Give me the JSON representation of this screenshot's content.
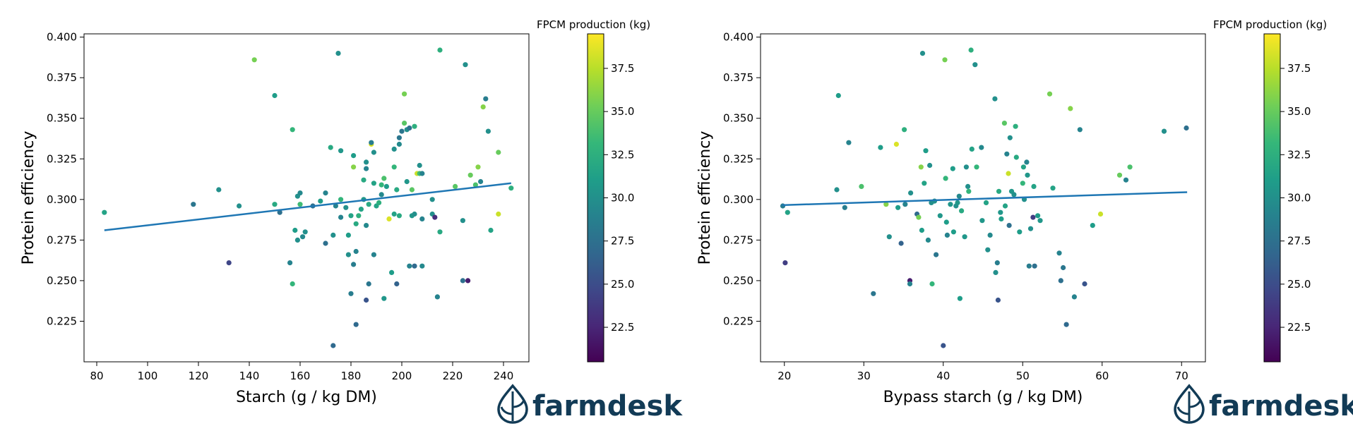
{
  "colors": {
    "regression_line": "#1f77b4",
    "logo": "#123b56",
    "axis": "#000000"
  },
  "colormap": {
    "name": "viridis",
    "stops": [
      "#440154",
      "#482878",
      "#3e4989",
      "#31688e",
      "#26828e",
      "#1f9e89",
      "#35b779",
      "#6ece58",
      "#b5de2b",
      "#fde725"
    ]
  },
  "logo": {
    "text": "farmdesk",
    "icon": "drop-leaf-icon"
  },
  "chart_data": [
    {
      "type": "scatter",
      "xlabel": "Starch (g / kg DM)",
      "ylabel": "Protein efficiency",
      "xlim": [
        75,
        250
      ],
      "ylim": [
        0.2,
        0.402
      ],
      "xticks": [
        80,
        100,
        120,
        140,
        160,
        180,
        200,
        220,
        240
      ],
      "yticks": [
        0.225,
        0.25,
        0.275,
        0.3,
        0.325,
        0.35,
        0.375,
        0.4
      ],
      "xtick_labels": [
        "80",
        "100",
        "120",
        "140",
        "160",
        "180",
        "200",
        "220",
        "240"
      ],
      "ytick_labels": [
        "0.225",
        "0.250",
        "0.275",
        "0.300",
        "0.325",
        "0.350",
        "0.375",
        "0.400"
      ],
      "colorbar": {
        "label": "FPCM production (kg)",
        "range": [
          20.5,
          39.5
        ],
        "ticks": [
          22.5,
          25.0,
          27.5,
          30.0,
          32.5,
          35.0,
          37.5
        ],
        "tick_labels": [
          "22.5",
          "25.0",
          "27.5",
          "30.0",
          "32.5",
          "35.0",
          "37.5"
        ]
      },
      "regression": {
        "x": [
          83,
          243
        ],
        "y": [
          0.281,
          0.31
        ]
      },
      "points": [
        [
          83,
          0.292,
          31.5
        ],
        [
          118,
          0.297,
          28.0
        ],
        [
          128,
          0.306,
          30.0
        ],
        [
          132,
          0.261,
          24.5
        ],
        [
          136,
          0.296,
          30.0
        ],
        [
          142,
          0.386,
          35.5
        ],
        [
          150,
          0.364,
          31.0
        ],
        [
          150,
          0.297,
          32.0
        ],
        [
          152,
          0.292,
          27.5
        ],
        [
          156,
          0.261,
          29.0
        ],
        [
          157,
          0.343,
          33.0
        ],
        [
          157,
          0.248,
          33.0
        ],
        [
          158,
          0.281,
          31.0
        ],
        [
          159,
          0.275,
          30.0
        ],
        [
          159,
          0.302,
          30.0
        ],
        [
          160,
          0.304,
          29.5
        ],
        [
          160,
          0.297,
          33.5
        ],
        [
          161,
          0.277,
          29.5
        ],
        [
          162,
          0.28,
          30.0
        ],
        [
          165,
          0.296,
          27.5
        ],
        [
          168,
          0.299,
          31.0
        ],
        [
          170,
          0.273,
          27.5
        ],
        [
          170,
          0.304,
          29.0
        ],
        [
          172,
          0.332,
          32.0
        ],
        [
          173,
          0.278,
          30.0
        ],
        [
          173,
          0.21,
          27.0
        ],
        [
          174,
          0.296,
          29.0
        ],
        [
          175,
          0.39,
          30.0
        ],
        [
          176,
          0.33,
          30.5
        ],
        [
          176,
          0.3,
          33.0
        ],
        [
          176,
          0.289,
          29.0
        ],
        [
          178,
          0.295,
          30.0
        ],
        [
          179,
          0.266,
          30.0
        ],
        [
          179,
          0.278,
          31.0
        ],
        [
          180,
          0.29,
          31.5
        ],
        [
          180,
          0.242,
          28.5
        ],
        [
          181,
          0.32,
          36.0
        ],
        [
          181,
          0.26,
          28.5
        ],
        [
          181,
          0.327,
          31.0
        ],
        [
          182,
          0.223,
          27.0
        ],
        [
          182,
          0.268,
          29.0
        ],
        [
          182,
          0.285,
          32.0
        ],
        [
          183,
          0.29,
          32.5
        ],
        [
          184,
          0.294,
          31.5
        ],
        [
          185,
          0.3,
          30.5
        ],
        [
          185,
          0.312,
          32.0
        ],
        [
          186,
          0.284,
          29.5
        ],
        [
          186,
          0.238,
          25.5
        ],
        [
          186,
          0.319,
          29.0
        ],
        [
          186,
          0.323,
          30.0
        ],
        [
          187,
          0.248,
          28.0
        ],
        [
          187,
          0.297,
          32.0
        ],
        [
          188,
          0.334,
          38.5
        ],
        [
          188,
          0.335,
          28.5
        ],
        [
          189,
          0.31,
          31.5
        ],
        [
          189,
          0.266,
          29.0
        ],
        [
          189,
          0.329,
          30.0
        ],
        [
          190,
          0.296,
          31.5
        ],
        [
          191,
          0.298,
          32.5
        ],
        [
          192,
          0.303,
          29.5
        ],
        [
          192,
          0.309,
          33.0
        ],
        [
          193,
          0.313,
          34.0
        ],
        [
          193,
          0.239,
          30.5
        ],
        [
          194,
          0.308,
          31.0
        ],
        [
          195,
          0.288,
          38.5
        ],
        [
          196,
          0.255,
          31.0
        ],
        [
          197,
          0.331,
          30.0
        ],
        [
          197,
          0.32,
          33.0
        ],
        [
          197,
          0.291,
          31.5
        ],
        [
          198,
          0.306,
          32.0
        ],
        [
          198,
          0.248,
          26.5
        ],
        [
          199,
          0.29,
          32.0
        ],
        [
          199,
          0.334,
          29.5
        ],
        [
          199,
          0.338,
          28.0
        ],
        [
          200,
          0.342,
          28.0
        ],
        [
          201,
          0.347,
          34.5
        ],
        [
          201,
          0.365,
          35.5
        ],
        [
          202,
          0.343,
          30.0
        ],
        [
          202,
          0.311,
          30.5
        ],
        [
          203,
          0.344,
          27.5
        ],
        [
          203,
          0.259,
          29.0
        ],
        [
          204,
          0.29,
          30.5
        ],
        [
          204,
          0.306,
          34.5
        ],
        [
          205,
          0.291,
          30.0
        ],
        [
          205,
          0.345,
          32.5
        ],
        [
          205,
          0.259,
          27.0
        ],
        [
          206,
          0.316,
          38.0
        ],
        [
          207,
          0.316,
          33.5
        ],
        [
          207,
          0.321,
          30.0
        ],
        [
          208,
          0.288,
          29.0
        ],
        [
          208,
          0.259,
          29.5
        ],
        [
          208,
          0.316,
          29.0
        ],
        [
          212,
          0.291,
          30.0
        ],
        [
          212,
          0.3,
          30.0
        ],
        [
          213,
          0.289,
          23.0
        ],
        [
          214,
          0.24,
          29.0
        ],
        [
          215,
          0.392,
          32.5
        ],
        [
          215,
          0.28,
          32.0
        ],
        [
          221,
          0.308,
          34.5
        ],
        [
          224,
          0.287,
          30.0
        ],
        [
          224,
          0.25,
          27.5
        ],
        [
          225,
          0.383,
          30.0
        ],
        [
          226,
          0.25,
          22.0
        ],
        [
          227,
          0.315,
          35.0
        ],
        [
          229,
          0.309,
          34.0
        ],
        [
          230,
          0.32,
          36.0
        ],
        [
          231,
          0.311,
          29.0
        ],
        [
          232,
          0.357,
          36.0
        ],
        [
          233,
          0.362,
          28.5
        ],
        [
          234,
          0.342,
          30.0
        ],
        [
          235,
          0.281,
          31.5
        ],
        [
          238,
          0.329,
          35.0
        ],
        [
          238,
          0.291,
          38.0
        ],
        [
          243,
          0.307,
          32.5
        ]
      ]
    },
    {
      "type": "scatter",
      "xlabel": "Bypass starch (g / kg DM)",
      "ylabel": "Protein efficiency",
      "xlim": [
        17,
        73
      ],
      "ylim": [
        0.2,
        0.402
      ],
      "xticks": [
        20,
        30,
        40,
        50,
        60,
        70
      ],
      "yticks": [
        0.225,
        0.25,
        0.275,
        0.3,
        0.325,
        0.35,
        0.375,
        0.4
      ],
      "xtick_labels": [
        "20",
        "30",
        "40",
        "50",
        "60",
        "70"
      ],
      "ytick_labels": [
        "0.225",
        "0.250",
        "0.275",
        "0.300",
        "0.325",
        "0.350",
        "0.375",
        "0.400"
      ],
      "colorbar": {
        "label": "FPCM production (kg)",
        "range": [
          20.5,
          39.5
        ],
        "ticks": [
          22.5,
          25.0,
          27.5,
          30.0,
          32.5,
          35.0,
          37.5
        ],
        "tick_labels": [
          "22.5",
          "25.0",
          "27.5",
          "30.0",
          "32.5",
          "35.0",
          "37.5"
        ]
      },
      "regression": {
        "x": [
          19.7,
          70.7
        ],
        "y": [
          0.2965,
          0.3045
        ]
      },
      "points": [
        [
          19.8,
          0.296,
          28.5
        ],
        [
          20.1,
          0.261,
          24.0
        ],
        [
          20.4,
          0.292,
          31.5
        ],
        [
          26.6,
          0.306,
          30.0
        ],
        [
          26.8,
          0.364,
          31.0
        ],
        [
          27.6,
          0.295,
          28.5
        ],
        [
          28.1,
          0.335,
          29.0
        ],
        [
          29.7,
          0.308,
          34.0
        ],
        [
          31.2,
          0.242,
          28.0
        ],
        [
          32.1,
          0.332,
          31.0
        ],
        [
          32.8,
          0.297,
          36.0
        ],
        [
          33.2,
          0.277,
          30.0
        ],
        [
          34.1,
          0.334,
          38.5
        ],
        [
          34.3,
          0.295,
          31.0
        ],
        [
          34.7,
          0.273,
          26.5
        ],
        [
          35.1,
          0.343,
          32.5
        ],
        [
          35.2,
          0.297,
          29.0
        ],
        [
          35.8,
          0.25,
          22.0
        ],
        [
          35.8,
          0.248,
          29.0
        ],
        [
          35.9,
          0.304,
          30.0
        ],
        [
          36.7,
          0.291,
          27.0
        ],
        [
          36.9,
          0.289,
          35.5
        ],
        [
          37.2,
          0.32,
          36.0
        ],
        [
          37.3,
          0.281,
          31.0
        ],
        [
          37.4,
          0.39,
          30.0
        ],
        [
          37.6,
          0.31,
          31.5
        ],
        [
          37.8,
          0.33,
          31.0
        ],
        [
          38.1,
          0.275,
          29.5
        ],
        [
          38.3,
          0.321,
          30.0
        ],
        [
          38.5,
          0.298,
          30.0
        ],
        [
          38.6,
          0.248,
          33.0
        ],
        [
          38.9,
          0.299,
          30.0
        ],
        [
          39.1,
          0.266,
          28.0
        ],
        [
          39.6,
          0.29,
          30.5
        ],
        [
          40.0,
          0.21,
          25.5
        ],
        [
          40.2,
          0.386,
          35.5
        ],
        [
          40.3,
          0.313,
          33.0
        ],
        [
          40.4,
          0.286,
          31.0
        ],
        [
          40.5,
          0.278,
          29.0
        ],
        [
          40.9,
          0.297,
          30.5
        ],
        [
          41.2,
          0.319,
          31.0
        ],
        [
          41.3,
          0.28,
          31.0
        ],
        [
          41.6,
          0.296,
          30.0
        ],
        [
          41.8,
          0.298,
          30.5
        ],
        [
          42.0,
          0.302,
          29.5
        ],
        [
          42.1,
          0.239,
          31.0
        ],
        [
          42.3,
          0.293,
          32.0
        ],
        [
          42.7,
          0.277,
          30.5
        ],
        [
          42.9,
          0.32,
          30.0
        ],
        [
          43.1,
          0.308,
          30.0
        ],
        [
          43.2,
          0.305,
          33.0
        ],
        [
          43.5,
          0.392,
          32.5
        ],
        [
          43.6,
          0.331,
          31.5
        ],
        [
          44.0,
          0.383,
          30.0
        ],
        [
          44.2,
          0.32,
          33.0
        ],
        [
          44.8,
          0.332,
          29.5
        ],
        [
          44.9,
          0.287,
          30.5
        ],
        [
          45.4,
          0.298,
          31.5
        ],
        [
          45.6,
          0.269,
          30.0
        ],
        [
          45.9,
          0.278,
          29.5
        ],
        [
          46.5,
          0.362,
          30.0
        ],
        [
          46.6,
          0.255,
          30.0
        ],
        [
          46.8,
          0.261,
          28.5
        ],
        [
          46.9,
          0.238,
          25.5
        ],
        [
          47.0,
          0.305,
          32.0
        ],
        [
          47.2,
          0.292,
          30.5
        ],
        [
          47.3,
          0.288,
          31.0
        ],
        [
          47.7,
          0.347,
          34.5
        ],
        [
          47.8,
          0.296,
          31.5
        ],
        [
          48.0,
          0.328,
          29.0
        ],
        [
          48.2,
          0.316,
          38.0
        ],
        [
          48.3,
          0.284,
          27.5
        ],
        [
          48.4,
          0.338,
          30.0
        ],
        [
          48.6,
          0.305,
          30.5
        ],
        [
          48.9,
          0.303,
          30.0
        ],
        [
          49.1,
          0.345,
          32.5
        ],
        [
          49.2,
          0.326,
          32.0
        ],
        [
          49.6,
          0.28,
          31.0
        ],
        [
          50.0,
          0.31,
          33.0
        ],
        [
          50.1,
          0.32,
          31.5
        ],
        [
          50.2,
          0.3,
          30.0
        ],
        [
          50.5,
          0.323,
          29.0
        ],
        [
          50.6,
          0.315,
          30.5
        ],
        [
          50.8,
          0.259,
          28.5
        ],
        [
          51.0,
          0.282,
          30.0
        ],
        [
          51.3,
          0.289,
          24.0
        ],
        [
          51.4,
          0.308,
          31.5
        ],
        [
          51.5,
          0.259,
          27.5
        ],
        [
          51.9,
          0.29,
          31.0
        ],
        [
          52.2,
          0.287,
          30.5
        ],
        [
          53.4,
          0.365,
          35.5
        ],
        [
          53.8,
          0.307,
          31.5
        ],
        [
          54.6,
          0.267,
          29.0
        ],
        [
          54.8,
          0.25,
          27.5
        ],
        [
          55.1,
          0.258,
          28.0
        ],
        [
          55.5,
          0.223,
          27.0
        ],
        [
          56.0,
          0.356,
          36.0
        ],
        [
          56.5,
          0.24,
          29.0
        ],
        [
          57.2,
          0.343,
          29.0
        ],
        [
          57.8,
          0.248,
          25.5
        ],
        [
          58.8,
          0.284,
          31.0
        ],
        [
          59.8,
          0.291,
          38.0
        ],
        [
          62.2,
          0.315,
          35.0
        ],
        [
          63.0,
          0.312,
          29.0
        ],
        [
          63.5,
          0.32,
          34.0
        ],
        [
          67.8,
          0.342,
          30.0
        ],
        [
          70.6,
          0.344,
          27.5
        ]
      ]
    }
  ]
}
